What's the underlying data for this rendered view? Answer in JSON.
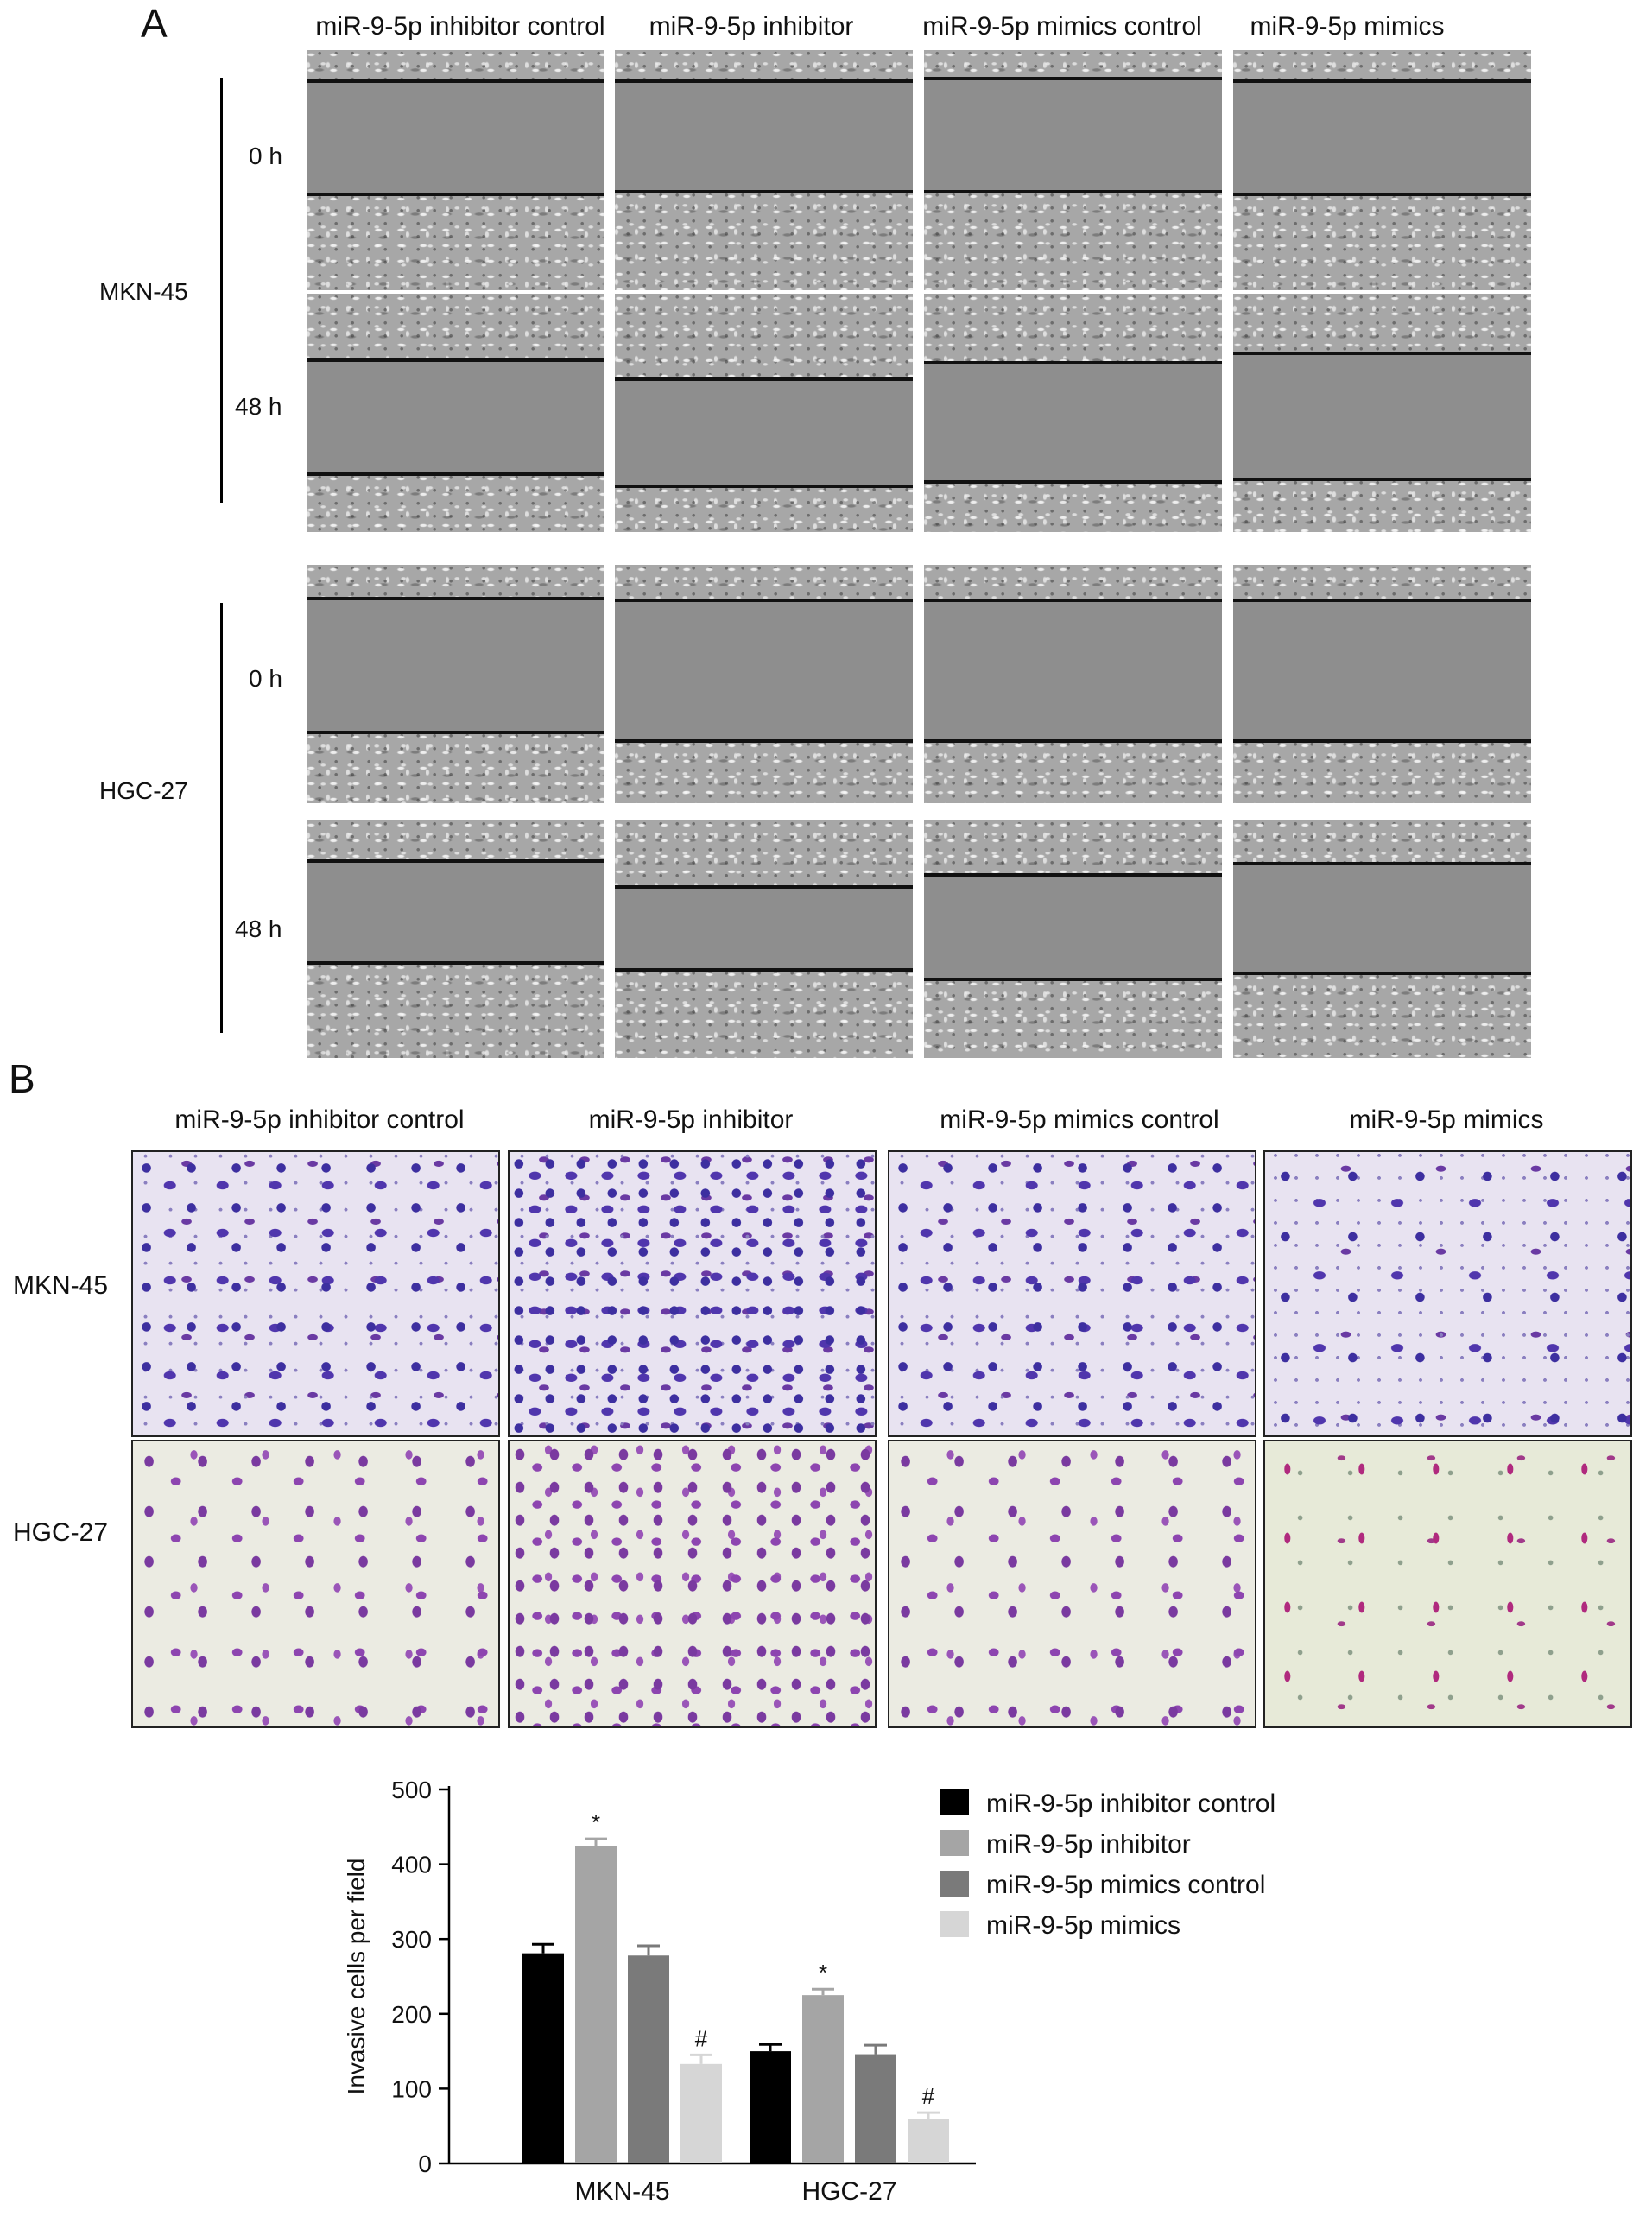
{
  "panel_a": {
    "letter": "A",
    "columns": [
      "miR-9-5p inhibitor control",
      "miR-9-5p inhibitor",
      "miR-9-5p mimics control",
      "miR-9-5p mimics"
    ],
    "cell_lines": [
      {
        "name": "MKN-45",
        "timepoints": [
          "0 h",
          "48 h"
        ]
      },
      {
        "name": "HGC-27",
        "timepoints": [
          "0 h",
          "48 h"
        ]
      }
    ]
  },
  "panel_b": {
    "letter": "B",
    "columns": [
      "miR-9-5p inhibitor control",
      "miR-9-5p inhibitor",
      "miR-9-5p mimics control",
      "miR-9-5p mimics"
    ],
    "rows": [
      "MKN-45",
      "HGC-27"
    ]
  },
  "chart_data": {
    "type": "bar",
    "categories": [
      "MKN-45",
      "HGC-27"
    ],
    "series": [
      {
        "name": "miR-9-5p inhibitor control",
        "color": "#000000",
        "values": [
          281,
          150
        ],
        "errors": [
          12,
          9
        ]
      },
      {
        "name": "miR-9-5p inhibitor",
        "color": "#a5a5a5",
        "values": [
          424,
          225
        ],
        "errors": [
          10,
          8
        ]
      },
      {
        "name": "miR-9-5p mimics control",
        "color": "#7a7a7a",
        "values": [
          278,
          146
        ],
        "errors": [
          13,
          12
        ]
      },
      {
        "name": "miR-9-5p mimics",
        "color": "#d6d6d6",
        "values": [
          133,
          60
        ],
        "errors": [
          12,
          8
        ]
      }
    ],
    "annotations": [
      {
        "category": "MKN-45",
        "series": "miR-9-5p inhibitor",
        "symbol": "*"
      },
      {
        "category": "MKN-45",
        "series": "miR-9-5p mimics",
        "symbol": "#"
      },
      {
        "category": "HGC-27",
        "series": "miR-9-5p inhibitor",
        "symbol": "*"
      },
      {
        "category": "HGC-27",
        "series": "miR-9-5p mimics",
        "symbol": "#"
      }
    ],
    "ylabel": "Invasive cells per field",
    "xlabel": "",
    "ylim": [
      0,
      500
    ],
    "yticks": [
      0,
      100,
      200,
      300,
      400,
      500
    ],
    "legend_position": "right"
  }
}
